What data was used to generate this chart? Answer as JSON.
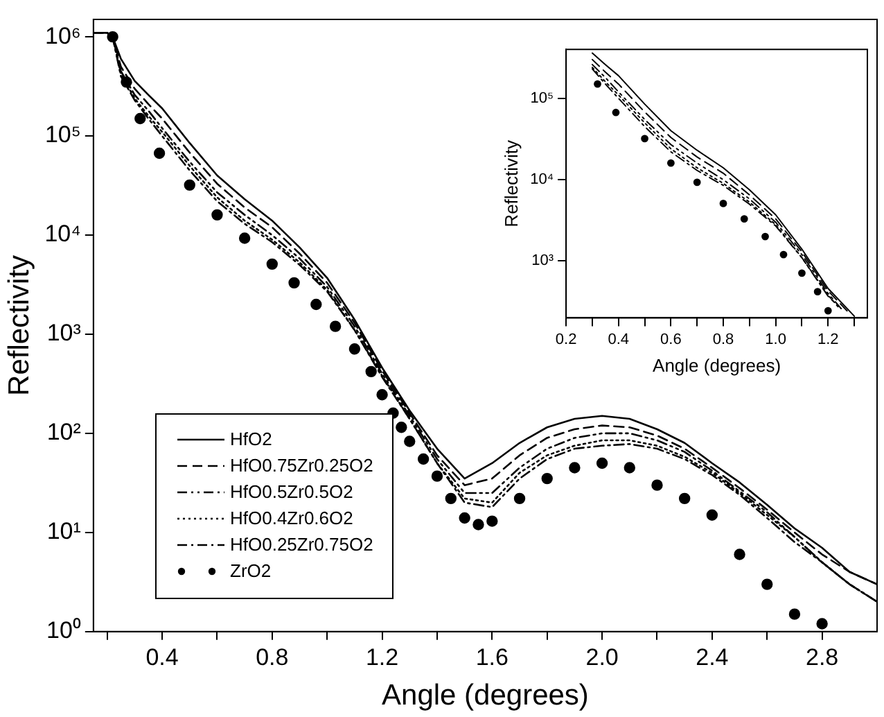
{
  "chart_data": [
    {
      "type": "line",
      "xlabel": "Angle (degrees)",
      "ylabel": "Reflectivity",
      "log": "y",
      "legend": "bottom left",
      "xlim": [
        0.15,
        3.0
      ],
      "ylim": [
        1,
        1500000
      ],
      "xticks": [
        {
          "value": 0.2,
          "label": null
        },
        0.4,
        {
          "value": 0.6,
          "label": null
        },
        0.8,
        {
          "value": 1.0,
          "label": null
        },
        1.2,
        {
          "value": 1.4,
          "label": null
        },
        1.6,
        {
          "value": 1.8,
          "label": null
        },
        {
          "value": 2.0,
          "label": "2.0"
        },
        {
          "value": 2.2,
          "label": null
        },
        2.4,
        {
          "value": 2.6,
          "label": null
        },
        2.8
      ],
      "yticks": [
        {
          "value": 1,
          "label": "10⁰"
        },
        {
          "value": 10,
          "label": "10¹"
        },
        {
          "value": 100,
          "label": "10²"
        },
        {
          "value": 1000,
          "label": "10³"
        },
        {
          "value": 10000,
          "label": "10⁴"
        },
        {
          "value": 100000,
          "label": "10⁵"
        },
        {
          "value": 1000000,
          "label": "10⁶"
        }
      ],
      "x": [
        0.15,
        0.2,
        0.22,
        0.25,
        0.3,
        0.35,
        0.4,
        0.5,
        0.6,
        0.7,
        0.8,
        0.9,
        1.0,
        1.1,
        1.2,
        1.3,
        1.4,
        1.5,
        1.6,
        1.7,
        1.8,
        1.9,
        2.0,
        2.1,
        2.2,
        2.3,
        2.4,
        2.5,
        2.6,
        2.7,
        2.8,
        2.9,
        3.0
      ],
      "series": [
        {
          "name": "HfO2",
          "color": "#000000",
          "line_style": "solid",
          "values": [
            1100000,
            1100000,
            1000000,
            600000,
            360000,
            260000,
            190000,
            85000,
            40000,
            23000,
            14000,
            7500,
            3700,
            1400,
            460,
            170,
            70,
            35,
            50,
            80,
            115,
            140,
            150,
            140,
            110,
            80,
            50,
            32,
            19,
            11,
            7,
            4,
            3
          ]
        },
        {
          "name": "HfO0.75Zr0.25O2",
          "color": "#000000",
          "line_style": "dashed",
          "values": [
            1100000,
            1100000,
            1000000,
            500000,
            300000,
            210000,
            150000,
            68000,
            33000,
            19000,
            12000,
            6500,
            3300,
            1300,
            430,
            160,
            60,
            30,
            35,
            60,
            90,
            110,
            120,
            115,
            95,
            70,
            45,
            28,
            17,
            10,
            6,
            4,
            3
          ]
        },
        {
          "name": "HfO0.5Zr0.5O2",
          "color": "#000000",
          "line_style": "dashdotdot",
          "values": [
            1100000,
            1100000,
            1000000,
            450000,
            260000,
            180000,
            120000,
            55000,
            27000,
            16000,
            10000,
            5800,
            3000,
            1200,
            400,
            150,
            55,
            25,
            25,
            45,
            70,
            90,
            100,
            100,
            85,
            65,
            42,
            26,
            16,
            9,
            5,
            3,
            2
          ]
        },
        {
          "name": "HfO0.4Zr0.6O2",
          "color": "#000000",
          "line_style": "dotted",
          "values": [
            1100000,
            1100000,
            1000000,
            420000,
            240000,
            160000,
            110000,
            50000,
            24000,
            14000,
            9000,
            5300,
            2800,
            1100,
            380,
            140,
            50,
            22,
            20,
            40,
            60,
            75,
            85,
            85,
            75,
            58,
            40,
            25,
            15,
            9,
            5,
            3,
            2
          ]
        },
        {
          "name": "HfO0.25Zr0.75O2",
          "color": "#000000",
          "line_style": "dashdot",
          "values": [
            1100000,
            1100000,
            1000000,
            400000,
            230000,
            150000,
            100000,
            45000,
            22000,
            13000,
            8500,
            5000,
            2700,
            1100,
            370,
            140,
            50,
            20,
            18,
            35,
            55,
            70,
            75,
            78,
            70,
            55,
            38,
            24,
            14,
            8,
            5,
            3,
            2
          ]
        },
        {
          "name": "ZrO2",
          "type": "scatter",
          "marker": "circle",
          "color": "#000000",
          "x": [
            0.22,
            0.27,
            0.32,
            0.39,
            0.5,
            0.6,
            0.7,
            0.8,
            0.88,
            0.96,
            1.03,
            1.1,
            1.16,
            1.2,
            1.24,
            1.27,
            1.3,
            1.35,
            1.4,
            1.45,
            1.5,
            1.55,
            1.6,
            1.7,
            1.8,
            1.9,
            2.0,
            2.1,
            2.2,
            2.3,
            2.4,
            2.5,
            2.6,
            2.7,
            2.8
          ],
          "values": [
            1000000,
            350000,
            150000,
            67000,
            32000,
            16000,
            9300,
            5100,
            3300,
            2000,
            1200,
            710,
            420,
            245,
            160,
            115,
            83,
            55,
            37,
            22,
            14,
            12,
            13,
            22,
            35,
            45,
            50,
            45,
            30,
            22,
            15,
            6,
            3,
            1.5,
            1.2
          ]
        }
      ]
    },
    {
      "type": "line",
      "xlabel": "Angle (degrees)",
      "ylabel": "Reflectivity",
      "log": "y",
      "xlim": [
        0.2,
        1.35
      ],
      "ylim": [
        200,
        400000
      ],
      "xticks": [
        0.2,
        {
          "value": 0.3,
          "label": null
        },
        0.4,
        {
          "value": 0.5,
          "label": null
        },
        0.6,
        {
          "value": 0.7,
          "label": null
        },
        0.8,
        {
          "value": 0.9,
          "label": null
        },
        {
          "value": 1.0,
          "label": "1.0"
        },
        {
          "value": 1.1,
          "label": null
        },
        1.2,
        {
          "value": 1.3,
          "label": null
        }
      ],
      "yticks": [
        {
          "value": 1000,
          "label": "10³"
        },
        {
          "value": 10000,
          "label": "10⁴"
        },
        {
          "value": 100000,
          "label": "10⁵"
        }
      ],
      "x": [
        0.3,
        0.35,
        0.4,
        0.5,
        0.6,
        0.7,
        0.8,
        0.9,
        1.0,
        1.1,
        1.2,
        1.3
      ],
      "series": [
        {
          "color": "#000000",
          "line_style": "solid",
          "values": [
            360000,
            260000,
            190000,
            85000,
            40000,
            23000,
            14000,
            7500,
            3700,
            1400,
            460,
            210
          ]
        },
        {
          "color": "#000000",
          "line_style": "dashed",
          "x": [
            0.3,
            0.35,
            0.4,
            0.5,
            0.6,
            0.7,
            0.8,
            0.9,
            1.0,
            1.1,
            1.2,
            1.28
          ],
          "values": [
            300000,
            210000,
            150000,
            68000,
            33000,
            19000,
            12000,
            6500,
            3300,
            1300,
            430,
            230
          ]
        },
        {
          "color": "#000000",
          "line_style": "dashdotdot",
          "x": [
            0.3,
            0.35,
            0.4,
            0.5,
            0.6,
            0.7,
            0.8,
            0.9,
            1.0,
            1.1,
            1.2,
            1.25
          ],
          "values": [
            260000,
            180000,
            120000,
            55000,
            27000,
            16000,
            10000,
            5800,
            3000,
            1200,
            400,
            260
          ]
        },
        {
          "color": "#000000",
          "line_style": "dotted",
          "x": [
            0.3,
            0.35,
            0.4,
            0.5,
            0.6,
            0.7,
            0.8,
            0.9,
            1.0,
            1.1,
            1.2,
            1.24
          ],
          "values": [
            240000,
            160000,
            110000,
            50000,
            24000,
            14000,
            9000,
            5300,
            2800,
            1100,
            380,
            270
          ]
        },
        {
          "color": "#000000",
          "line_style": "dashdot",
          "x": [
            0.3,
            0.35,
            0.4,
            0.5,
            0.6,
            0.7,
            0.8,
            0.9,
            1.0,
            1.1,
            1.2,
            1.22
          ],
          "values": [
            230000,
            150000,
            100000,
            45000,
            22000,
            13000,
            8500,
            5000,
            2700,
            1100,
            370,
            320
          ]
        },
        {
          "type": "scatter",
          "marker": "circle",
          "color": "#000000",
          "x": [
            0.32,
            0.39,
            0.5,
            0.6,
            0.7,
            0.8,
            0.88,
            0.96,
            1.03,
            1.1,
            1.16,
            1.2
          ],
          "values": [
            150000,
            67000,
            32000,
            16000,
            9300,
            5100,
            3300,
            2000,
            1200,
            710,
            420,
            245
          ]
        }
      ]
    }
  ]
}
